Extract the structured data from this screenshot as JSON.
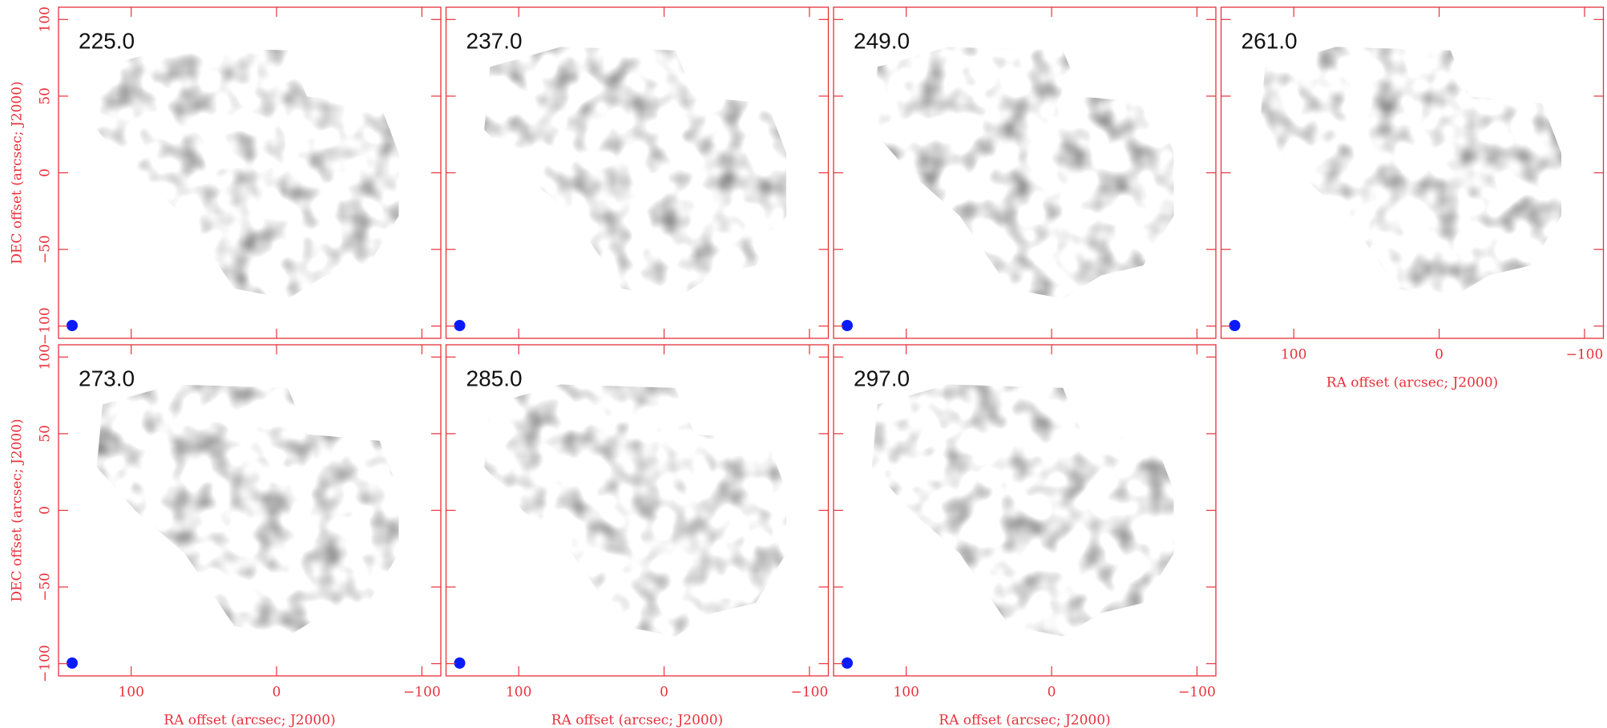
{
  "chart_data": [
    {
      "type": "channel-map",
      "title": "225.0",
      "xlim": [
        150,
        -113
      ],
      "ylim": [
        -108,
        108
      ],
      "xticks": [
        100,
        0,
        {
          "value": -100,
          "label": "−100"
        }
      ],
      "yticks": [
        {
          "value": -100,
          "label": "−100"
        },
        {
          "value": -50,
          "label": "−50"
        },
        0,
        50,
        100
      ],
      "ylabel": "DEC offset (arcsec; J2000)",
      "color": "#e8303a"
    },
    {
      "type": "channel-map",
      "title": "237.0",
      "xlim": [
        150,
        -113
      ],
      "ylim": [
        -108,
        108
      ],
      "xticks": [
        100,
        0,
        {
          "value": -100,
          "label": "−100"
        }
      ],
      "yticks": [
        {
          "value": -100,
          "label": "−100"
        },
        {
          "value": -50,
          "label": "−50"
        },
        0,
        50,
        100
      ],
      "color": "#e8303a"
    },
    {
      "type": "channel-map",
      "title": "249.0",
      "xlim": [
        150,
        -113
      ],
      "ylim": [
        -108,
        108
      ],
      "xticks": [
        100,
        0,
        {
          "value": -100,
          "label": "−100"
        }
      ],
      "yticks": [
        {
          "value": -100,
          "label": "−100"
        },
        {
          "value": -50,
          "label": "−50"
        },
        0,
        50,
        100
      ],
      "color": "#e8303a"
    },
    {
      "type": "channel-map",
      "title": "261.0",
      "xlim": [
        150,
        -113
      ],
      "ylim": [
        -108,
        108
      ],
      "xticks": [
        100,
        0,
        {
          "value": -100,
          "label": "−100"
        }
      ],
      "yticks": [
        {
          "value": -100,
          "label": "−100"
        },
        {
          "value": -50,
          "label": "−50"
        },
        0,
        50,
        100
      ],
      "xlabel": "RA offset (arcsec; J2000)",
      "color": "#e8303a"
    },
    {
      "type": "channel-map",
      "title": "273.0",
      "xlim": [
        150,
        -113
      ],
      "ylim": [
        -108,
        108
      ],
      "xticks": [
        100,
        0,
        {
          "value": -100,
          "label": "−100"
        }
      ],
      "yticks": [
        {
          "value": -100,
          "label": "−100"
        },
        {
          "value": -50,
          "label": "−50"
        },
        0,
        50,
        100
      ],
      "xlabel": "RA offset (arcsec; J2000)",
      "ylabel": "DEC offset (arcsec; J2000)",
      "color": "#e8303a"
    },
    {
      "type": "channel-map",
      "title": "285.0",
      "xlim": [
        150,
        -113
      ],
      "ylim": [
        -108,
        108
      ],
      "xticks": [
        100,
        0,
        {
          "value": -100,
          "label": "−100"
        }
      ],
      "yticks": [
        {
          "value": -100,
          "label": "−100"
        },
        {
          "value": -50,
          "label": "−50"
        },
        0,
        50,
        100
      ],
      "xlabel": "RA offset (arcsec; J2000)",
      "color": "#e8303a"
    },
    {
      "type": "channel-map",
      "title": "297.0",
      "xlim": [
        150,
        -113
      ],
      "ylim": [
        -108,
        108
      ],
      "xticks": [
        100,
        0,
        {
          "value": -100,
          "label": "−100"
        }
      ],
      "yticks": [
        {
          "value": -100,
          "label": "−100"
        },
        {
          "value": -50,
          "label": "−50"
        },
        0,
        50,
        100
      ],
      "xlabel": "RA offset (arcsec; J2000)",
      "color": "#e8303a"
    }
  ]
}
